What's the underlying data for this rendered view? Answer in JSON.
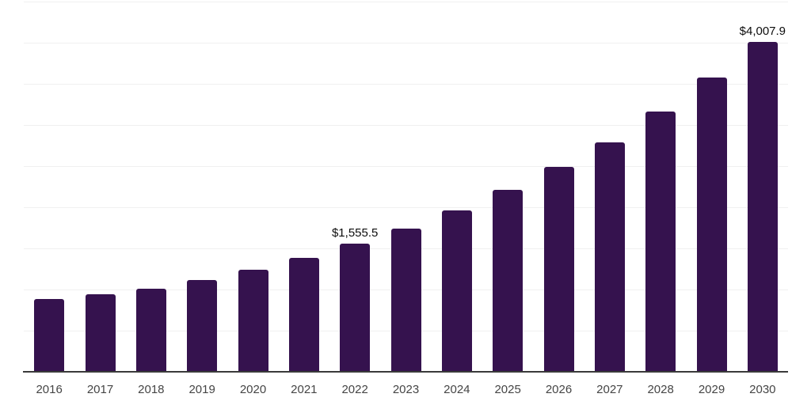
{
  "chart_data": {
    "type": "bar",
    "title": "",
    "xlabel": "",
    "ylabel": "",
    "categories": [
      "2016",
      "2017",
      "2018",
      "2019",
      "2020",
      "2021",
      "2022",
      "2023",
      "2024",
      "2025",
      "2026",
      "2027",
      "2028",
      "2029",
      "2030"
    ],
    "values": [
      885,
      947,
      1014,
      1111,
      1240,
      1389,
      1555.5,
      1745,
      1962,
      2212,
      2486,
      2793,
      3164,
      3577,
      4007.9
    ],
    "data_labels": {
      "2022": "$1,555.5",
      "2030": "$4,007.9"
    },
    "ylim": [
      0,
      4500
    ],
    "grid_step": 500,
    "grid": true,
    "legend": false,
    "colors": {
      "bar": "#35124e",
      "gridline": "#f0f0f0",
      "axis_line": "#3a3a3a",
      "tick_label": "#454545",
      "data_label": "#0d0d0d"
    }
  }
}
